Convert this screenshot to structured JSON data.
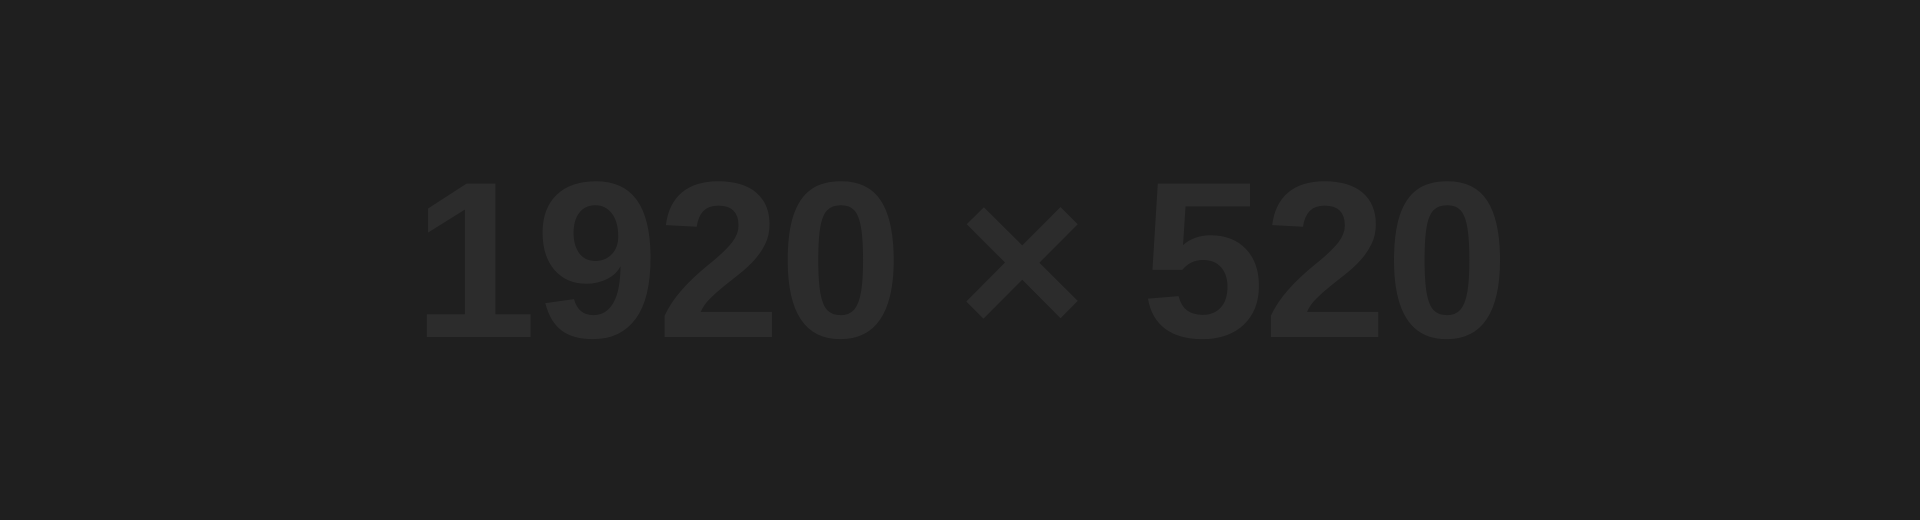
{
  "placeholder": {
    "width_text": "1920",
    "times_symbol": "×",
    "height_text": "520",
    "background_color": "#1f1f1f",
    "text_color": "#2c2c2c"
  }
}
